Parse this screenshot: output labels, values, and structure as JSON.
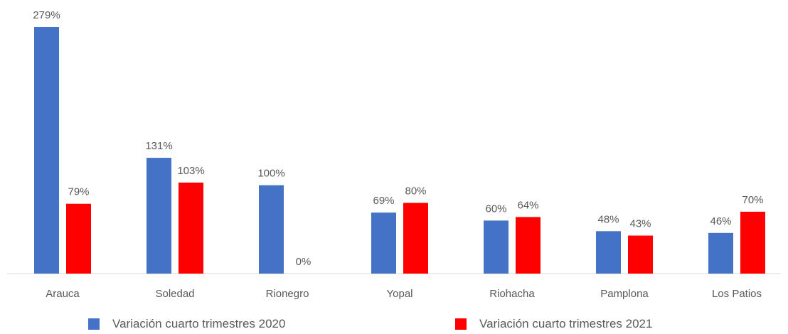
{
  "chart_data": {
    "type": "bar",
    "categories": [
      "Arauca",
      "Soledad",
      "Rionegro",
      "Yopal",
      "Riohacha",
      "Pamplona",
      "Los Patios"
    ],
    "series": [
      {
        "name": "Variación cuarto trimestres 2020",
        "color": "#4472C4",
        "values": [
          279,
          131,
          100,
          69,
          60,
          48,
          46
        ]
      },
      {
        "name": "Variación cuarto trimestres 2021",
        "color": "#FF0000",
        "values": [
          79,
          103,
          0,
          80,
          64,
          43,
          70
        ]
      }
    ],
    "value_suffix": "%",
    "ylim": [
      0,
      279
    ],
    "grid": false,
    "legend_position": "bottom"
  }
}
